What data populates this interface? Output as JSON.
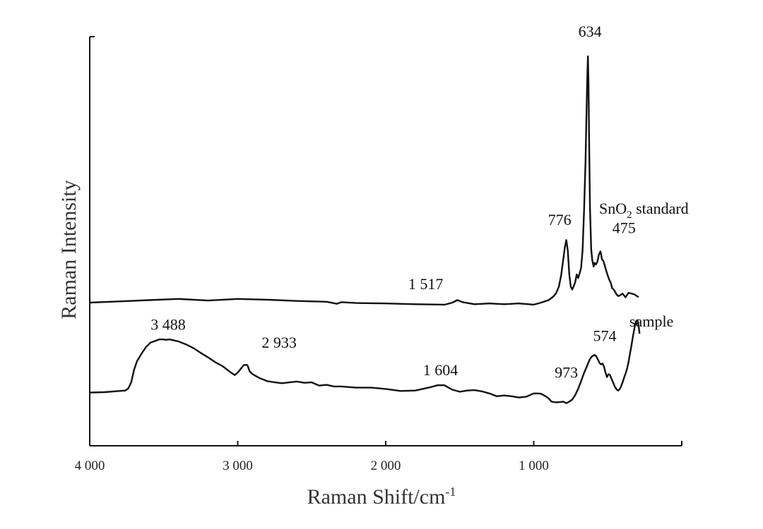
{
  "chart_data": {
    "type": "line",
    "title": "",
    "xlabel": "Raman Shift/cm",
    "xlabel_sup": "-1",
    "ylabel": "Raman Intensity",
    "xlim": [
      4000,
      0
    ],
    "ylim": [
      0,
      100
    ],
    "x_reversed": true,
    "xticks": [
      4000,
      3000,
      2000,
      1000
    ],
    "xtick_labels": [
      "4 000",
      "3 000",
      "2 000",
      "1 000"
    ],
    "grid": false,
    "series": [
      {
        "name": "SnO",
        "name_sub": "2",
        "name_suffix": " standard",
        "x": [
          4000,
          3800,
          3600,
          3400,
          3200,
          3000,
          2800,
          2600,
          2400,
          2330,
          2300,
          2200,
          2000,
          1800,
          1600,
          1550,
          1517,
          1480,
          1400,
          1300,
          1200,
          1100,
          1000,
          950,
          900,
          870,
          850,
          830,
          815,
          800,
          790,
          780,
          770,
          760,
          750,
          740,
          730,
          720,
          710,
          700,
          690,
          680,
          670,
          660,
          650,
          645,
          640,
          637,
          634,
          630,
          626,
          620,
          612,
          605,
          595,
          590,
          580,
          570,
          560,
          550,
          545,
          540,
          530,
          520,
          510,
          500,
          490,
          480,
          475,
          470,
          460,
          450,
          440,
          430,
          420,
          400,
          380,
          360,
          340,
          320,
          300,
          290
        ],
        "y": [
          35.0,
          35.3,
          35.6,
          35.9,
          35.5,
          35.9,
          35.7,
          35.4,
          35.2,
          34.7,
          35.1,
          34.9,
          34.8,
          34.6,
          34.5,
          35.0,
          35.6,
          35.1,
          34.6,
          34.8,
          34.6,
          34.8,
          34.5,
          35.0,
          35.6,
          36.4,
          37.2,
          38.9,
          41.7,
          45.7,
          48.5,
          50.3,
          47.7,
          41.9,
          38.9,
          38.2,
          39.0,
          40.0,
          41.9,
          41.0,
          42.1,
          43.5,
          47.7,
          57.4,
          69.6,
          79.1,
          87.1,
          91.5,
          95.2,
          88.7,
          74.4,
          58.2,
          48.1,
          45.4,
          43.8,
          44.7,
          44.3,
          45.0,
          46.7,
          47.5,
          46.9,
          45.6,
          45.2,
          44.0,
          42.7,
          41.6,
          40.6,
          39.9,
          39.2,
          38.5,
          38.2,
          37.6,
          37.0,
          36.6,
          36.7,
          37.2,
          36.3,
          37.4,
          37.2,
          37.0,
          36.5,
          36.4
        ]
      },
      {
        "name": "sample",
        "x": [
          4000,
          3900,
          3800,
          3760,
          3740,
          3720,
          3700,
          3680,
          3650,
          3620,
          3590,
          3560,
          3530,
          3500,
          3488,
          3460,
          3400,
          3350,
          3300,
          3250,
          3200,
          3150,
          3100,
          3050,
          3020,
          3000,
          2980,
          2960,
          2940,
          2933,
          2920,
          2900,
          2880,
          2850,
          2800,
          2750,
          2700,
          2650,
          2600,
          2550,
          2500,
          2450,
          2400,
          2350,
          2300,
          2200,
          2100,
          2000,
          1900,
          1800,
          1700,
          1650,
          1620,
          1604,
          1580,
          1550,
          1500,
          1450,
          1400,
          1350,
          1300,
          1250,
          1200,
          1150,
          1100,
          1050,
          1000,
          973,
          950,
          920,
          900,
          880,
          850,
          820,
          800,
          780,
          760,
          740,
          720,
          700,
          680,
          660,
          640,
          630,
          620,
          610,
          600,
          590,
          580,
          574,
          565,
          555,
          545,
          535,
          525,
          515,
          505,
          495,
          485,
          470,
          450,
          440,
          430,
          420,
          410,
          400,
          390,
          380,
          370,
          360,
          350,
          340,
          330,
          320,
          310,
          300,
          292,
          285
        ],
        "y": [
          13.0,
          13.1,
          13.4,
          13.5,
          14.0,
          15.5,
          18.6,
          20.7,
          22.5,
          24.1,
          25.2,
          25.6,
          26.0,
          26.0,
          25.9,
          26.0,
          25.5,
          24.8,
          23.9,
          22.7,
          21.6,
          20.4,
          19.4,
          18.0,
          17.3,
          17.9,
          18.8,
          19.7,
          19.8,
          19.6,
          18.2,
          17.5,
          17.1,
          16.5,
          15.8,
          15.5,
          15.3,
          15.5,
          15.7,
          15.4,
          15.5,
          14.7,
          14.9,
          14.5,
          14.5,
          14.2,
          14.2,
          13.9,
          13.4,
          13.5,
          14.3,
          14.8,
          14.8,
          14.8,
          14.3,
          13.7,
          13.2,
          13.5,
          13.6,
          13.3,
          12.8,
          12.1,
          12.3,
          12.1,
          11.8,
          12.0,
          12.8,
          12.8,
          12.7,
          12.1,
          11.6,
          10.8,
          10.6,
          10.7,
          10.8,
          10.4,
          10.8,
          11.3,
          12.4,
          13.9,
          15.8,
          17.8,
          19.5,
          20.4,
          21.2,
          21.7,
          22.0,
          22.2,
          22.0,
          21.6,
          21.0,
          20.2,
          19.9,
          20.1,
          19.3,
          17.9,
          16.8,
          17.5,
          17.3,
          16.0,
          14.3,
          13.8,
          13.5,
          13.8,
          14.5,
          15.5,
          16.6,
          17.6,
          18.8,
          20.4,
          22.5,
          24.5,
          26.7,
          28.7,
          30.4,
          30.7,
          29.5,
          27.4
        ]
      }
    ],
    "annotations": [
      {
        "text": "634",
        "x": 620,
        "y": 100
      },
      {
        "text": "776",
        "x": 825,
        "y": 54
      },
      {
        "text": "475",
        "x": 390,
        "y": 52
      },
      {
        "text": "1 517",
        "x": 1730,
        "y": 38.3
      },
      {
        "text": "3 488",
        "x": 3470,
        "y": 28.4
      },
      {
        "text": "2 933",
        "x": 2720,
        "y": 24
      },
      {
        "text": "1 604",
        "x": 1630,
        "y": 17.2
      },
      {
        "text": "973",
        "x": 780,
        "y": 16.6
      },
      {
        "text": "574",
        "x": 520,
        "y": 25.6
      }
    ]
  }
}
